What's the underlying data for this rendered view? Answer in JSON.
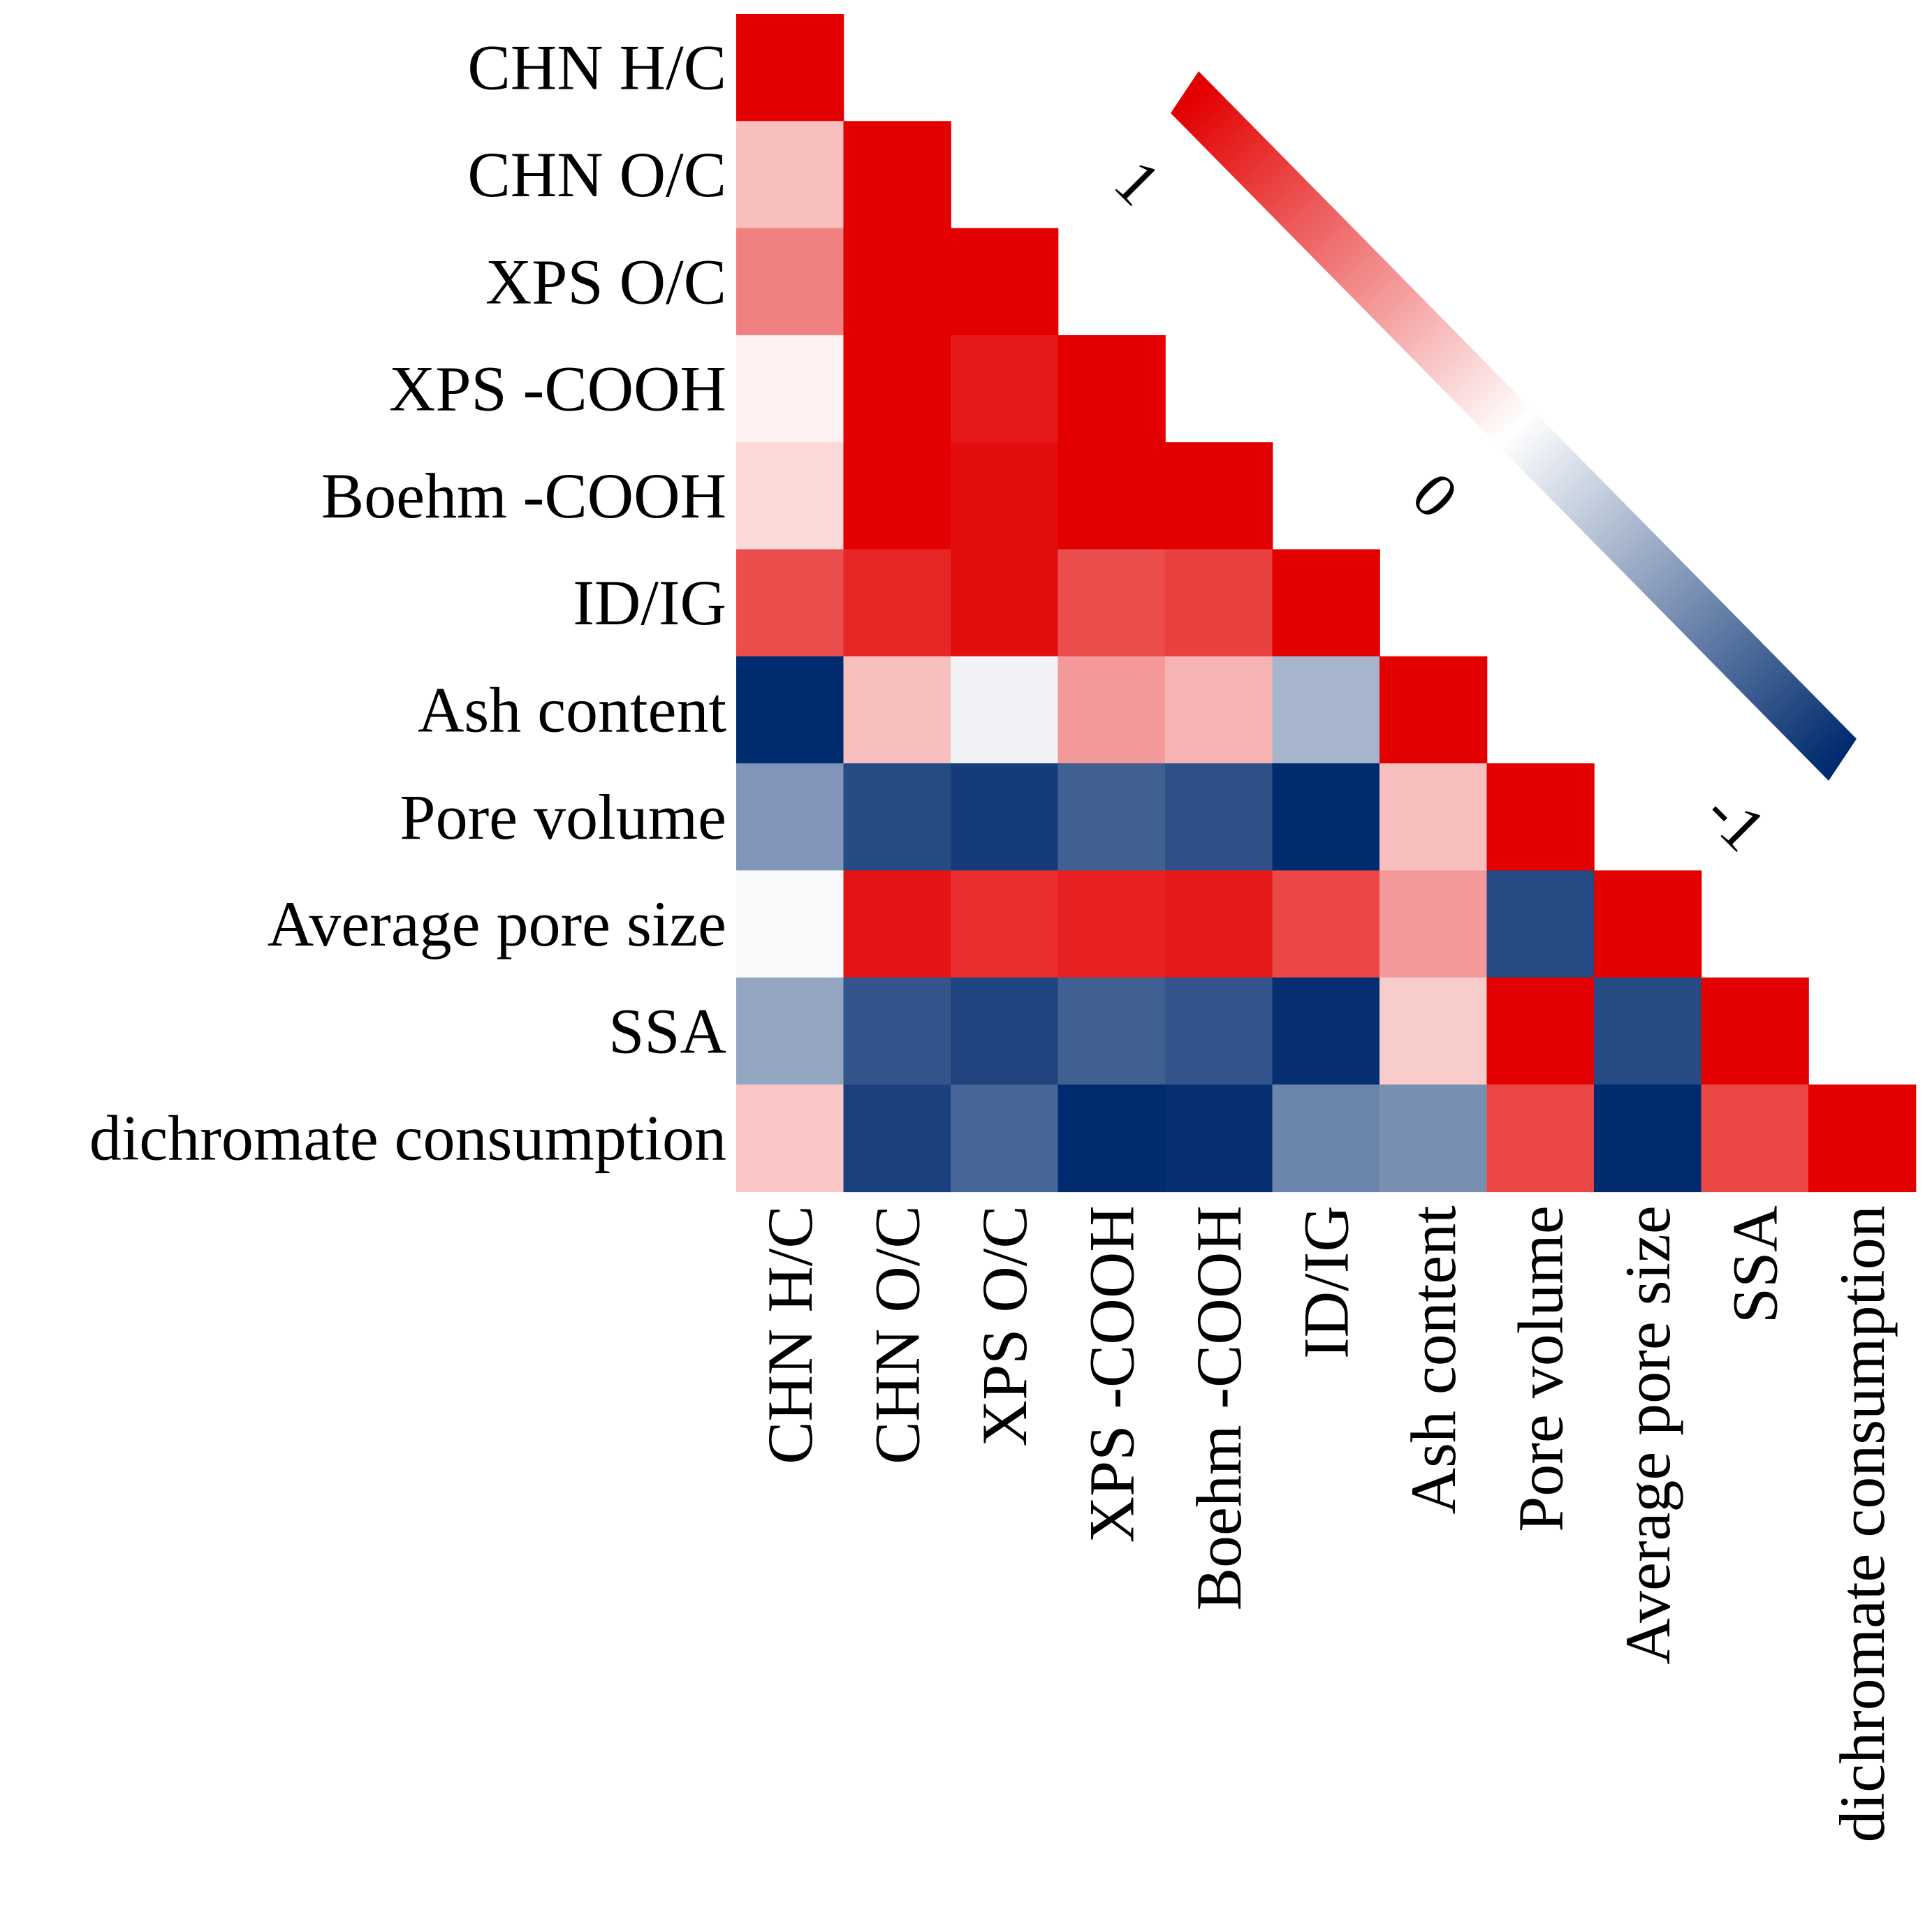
{
  "chart_data": {
    "type": "heatmap",
    "title": "",
    "variables": [
      "CHN H/C",
      "CHN O/C",
      "XPS O/C",
      "XPS -COOH",
      "Boehm -COOH",
      "ID/IG",
      "Ash content",
      "Pore volume",
      "Average pore size",
      "SSA",
      "dichromate consumption"
    ],
    "matrix": [
      [
        1
      ],
      [
        0.25,
        1
      ],
      [
        0.5,
        1,
        1
      ],
      [
        0.05,
        1,
        0.9,
        1
      ],
      [
        0.15,
        1,
        0.95,
        1,
        1
      ],
      [
        0.7,
        0.85,
        0.95,
        0.7,
        0.75,
        1
      ],
      [
        -1,
        0.25,
        -0.06,
        0.4,
        0.3,
        -0.35,
        1
      ],
      [
        -0.5,
        -0.85,
        -0.92,
        -0.75,
        -0.82,
        -1,
        0.25,
        1
      ],
      [
        -0.03,
        0.92,
        0.82,
        0.87,
        0.9,
        0.72,
        0.4,
        -0.85,
        1
      ],
      [
        -0.42,
        -0.8,
        -0.88,
        -0.75,
        -0.8,
        -0.98,
        0.2,
        1,
        -0.85,
        1
      ],
      [
        0.22,
        -0.9,
        -0.72,
        -1,
        -0.98,
        -0.58,
        -0.53,
        0.72,
        -1,
        0.72,
        1
      ]
    ],
    "colorbar": {
      "min": -1,
      "max": 1,
      "ticks": [
        "1",
        "0",
        "-1"
      ],
      "colors": {
        "high": "#e30000",
        "mid": "#ffffff",
        "low": "#002b6e"
      }
    }
  }
}
